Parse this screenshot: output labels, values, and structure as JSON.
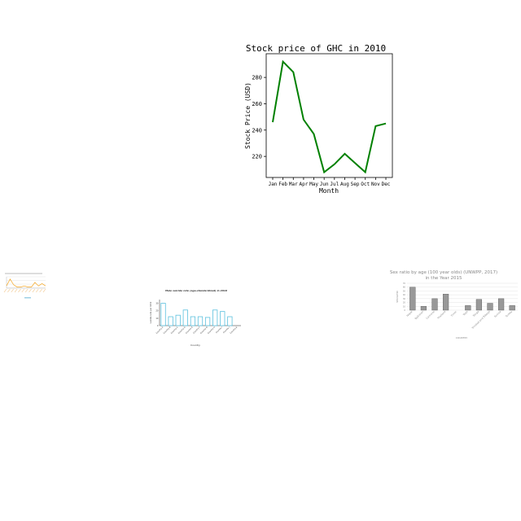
{
  "chart_data": [
    {
      "id": "main",
      "type": "line",
      "title": "Stock price of GHC in 2010",
      "xlabel": "Month",
      "ylabel": "Stock Price (USD)",
      "categories": [
        "Jan",
        "Feb",
        "Mar",
        "Apr",
        "May",
        "Jun",
        "Jul",
        "Aug",
        "Sep",
        "Oct",
        "Nov",
        "Dec"
      ],
      "values": [
        246,
        292,
        284,
        248,
        237,
        208,
        214,
        222,
        215,
        208,
        243,
        245
      ],
      "ylim": [
        204,
        298
      ],
      "yticks": [
        220,
        240,
        260,
        280
      ],
      "color": "#008000",
      "grid": false
    },
    {
      "id": "tiny",
      "type": "line",
      "title": "",
      "xlabel": "",
      "ylabel": "",
      "categories": [
        "",
        "",
        "",
        "",
        "",
        "",
        "",
        "",
        "",
        "",
        "",
        ""
      ],
      "values": [
        2,
        8,
        3,
        1,
        1,
        2,
        1,
        1,
        5,
        2,
        4,
        2
      ],
      "ylim": [
        0,
        10
      ],
      "color": "#f5a623",
      "grid": true
    },
    {
      "id": "mid",
      "type": "bar",
      "title": "Male suicide rate (age-standardized) in 2010",
      "xlabel": "Country",
      "ylabel": "suicide rate per 100k",
      "categories": [
        "Country A",
        "Country B",
        "Country C",
        "Country D",
        "Country E",
        "Country F",
        "Country G",
        "Country H",
        "Country I",
        "Country J",
        "Country K"
      ],
      "values": [
        30,
        12,
        14,
        21,
        12,
        12,
        11,
        21,
        19,
        12,
        0
      ],
      "ylim": [
        0,
        35
      ],
      "color": "#5bc0de",
      "grid": false
    },
    {
      "id": "right",
      "type": "bar",
      "title": "Sex ratio by age (100 year olds) (UNWPP, 2017)",
      "subtitle": "in the Year 2015",
      "xlabel": "COUNTRY",
      "ylabel": "SEX RATIO",
      "categories": [
        "Nepal",
        "Tajikistan",
        "Comoros",
        "Thailand",
        "Timor",
        "Togo",
        "Tonga",
        "Trinidad and Tobago",
        "Tunisia",
        "Turkey"
      ],
      "values": [
        60,
        10,
        30,
        42,
        0,
        12,
        28,
        18,
        30,
        12
      ],
      "ylim": [
        0,
        70
      ],
      "color": "#999999",
      "grid": true
    }
  ]
}
